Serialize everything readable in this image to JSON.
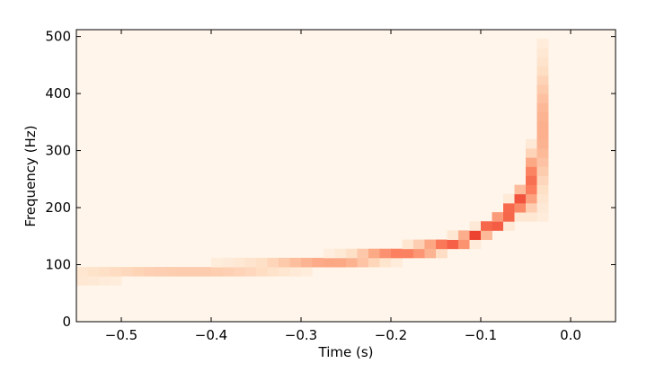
{
  "chart_data": {
    "type": "heatmap",
    "title": "",
    "xlabel": "Time (s)",
    "ylabel": "Frequency (Hz)",
    "xlim": [
      -0.55,
      0.05
    ],
    "ylim": [
      0,
      512
    ],
    "xticks": [
      -0.5,
      -0.4,
      -0.3,
      -0.2,
      -0.1,
      0.0
    ],
    "xtick_labels": [
      "−0.5",
      "−0.4",
      "−0.3",
      "−0.2",
      "−0.1",
      "0.0"
    ],
    "yticks": [
      0,
      100,
      200,
      300,
      400,
      500
    ],
    "ytick_labels": [
      "0",
      "100",
      "200",
      "300",
      "400",
      "500"
    ],
    "grid": false,
    "colormap": "Reds",
    "background_color": "#fff5ea",
    "time_bin_s": 0.0125,
    "freq_bin_hz": 16,
    "chirp": {
      "time": [
        -0.55,
        -0.5,
        -0.45,
        -0.4,
        -0.35,
        -0.3,
        -0.25,
        -0.2,
        -0.15,
        -0.12,
        -0.1,
        -0.08,
        -0.07,
        -0.06,
        -0.05,
        -0.04,
        -0.035,
        -0.03,
        -0.025
      ],
      "frequency": [
        80,
        84,
        88,
        91,
        95,
        101,
        108,
        118,
        130,
        142,
        157,
        175,
        190,
        205,
        225,
        260,
        300,
        350,
        420
      ],
      "intensity": [
        0.18,
        0.2,
        0.22,
        0.24,
        0.27,
        0.32,
        0.4,
        0.52,
        0.62,
        0.7,
        0.8,
        0.85,
        0.82,
        0.75,
        0.68,
        0.55,
        0.42,
        0.3,
        0.14
      ]
    }
  }
}
